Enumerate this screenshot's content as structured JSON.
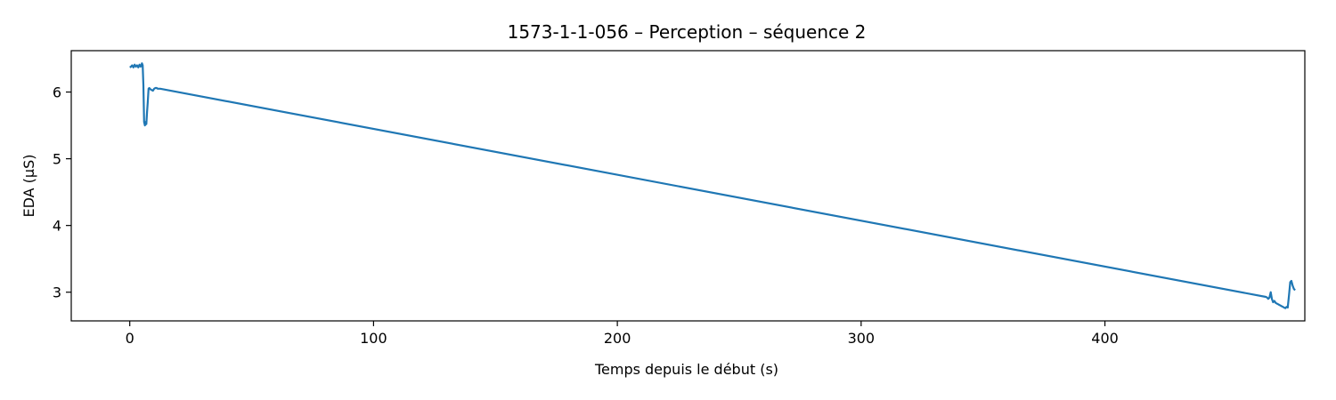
{
  "chart_data": {
    "type": "line",
    "title": "1573-1-1-056 – Perception – séquence 2",
    "xlabel": "Temps depuis le début (s)",
    "ylabel": "EDA (µS)",
    "xlim": [
      -24,
      482
    ],
    "ylim": [
      2.57,
      6.62
    ],
    "xticks": [
      0,
      100,
      200,
      300,
      400,
      500
    ],
    "yticks": [
      3,
      4,
      5,
      6
    ],
    "grid": false,
    "line_color": "#1f77b4",
    "series": [
      {
        "x": [
          0,
          0.5,
          1,
          1.5,
          2,
          2.5,
          3,
          3.5,
          4,
          4.5,
          5,
          5.3,
          5.6,
          5.9,
          6.2,
          6.5,
          6.8,
          7.1,
          7.4,
          7.7,
          8,
          8.5,
          9,
          9.5,
          10,
          10.5,
          11,
          11.5,
          12,
          12.5,
          466,
          466.5,
          467,
          467.5,
          468,
          468.5,
          469,
          469.5,
          470,
          470.5,
          471,
          471.5,
          472,
          472.5,
          473,
          473.5,
          474,
          474.5,
          475,
          475.5,
          476,
          476.5,
          477,
          477.5,
          478
        ],
        "y": [
          6.37,
          6.38,
          6.4,
          6.37,
          6.41,
          6.38,
          6.4,
          6.37,
          6.41,
          6.38,
          6.43,
          6.4,
          6.1,
          5.55,
          5.5,
          5.55,
          5.52,
          5.7,
          5.85,
          6.05,
          6.06,
          6.04,
          6.03,
          6.02,
          6.05,
          6.06,
          6.06,
          6.05,
          6.05,
          6.05,
          2.93,
          2.92,
          2.9,
          2.92,
          3.0,
          2.9,
          2.85,
          2.87,
          2.84,
          2.83,
          2.82,
          2.81,
          2.8,
          2.79,
          2.78,
          2.77,
          2.76,
          2.78,
          2.77,
          2.95,
          3.15,
          3.17,
          3.1,
          3.05,
          3.03
        ]
      }
    ]
  }
}
